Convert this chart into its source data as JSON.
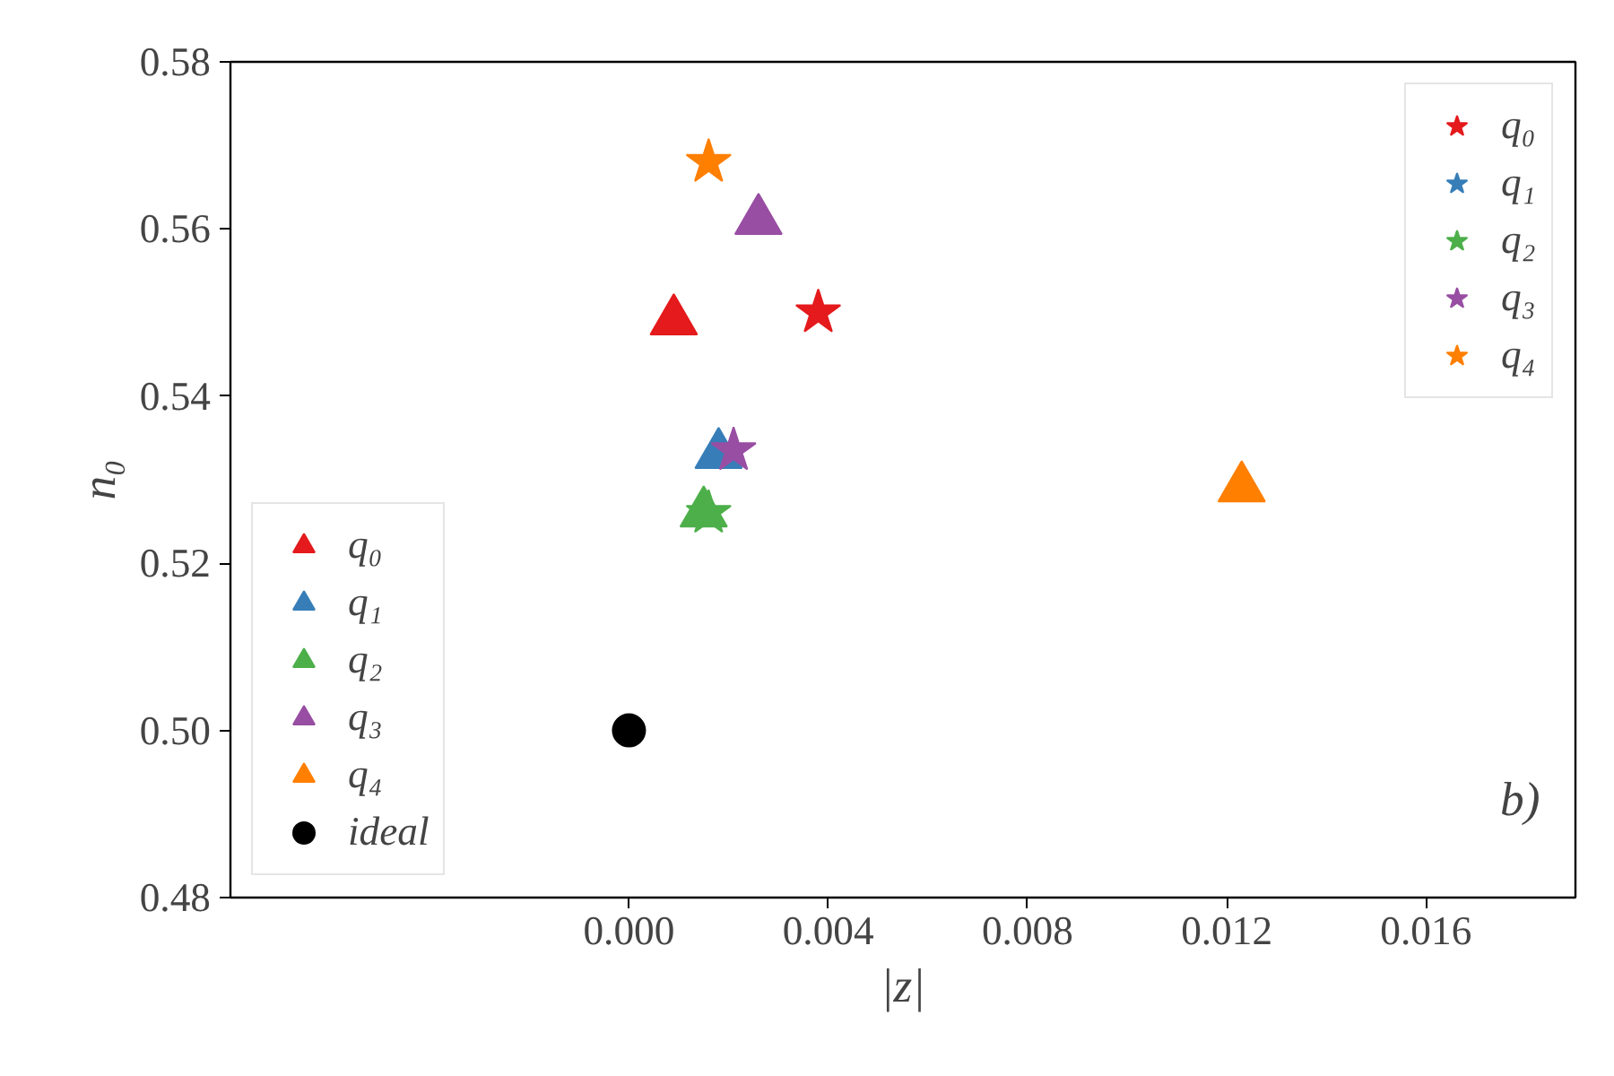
{
  "chart_data": {
    "type": "scatter",
    "xlabel": "|z|",
    "ylabel": "n₀",
    "xlim": [
      -0.008,
      0.019
    ],
    "ylim": [
      0.48,
      0.58
    ],
    "xticks": [
      {
        "value": 0,
        "label": "0.000"
      },
      {
        "value": 0.004,
        "label": "0.004"
      },
      {
        "value": 0.008,
        "label": "0.008"
      },
      {
        "value": 0.012,
        "label": "0.012"
      },
      {
        "value": 0.016,
        "label": "0.016"
      }
    ],
    "yticks": [
      {
        "value": 0.48,
        "label": "0.48"
      },
      {
        "value": 0.5,
        "label": "0.50"
      },
      {
        "value": 0.52,
        "label": "0.52"
      },
      {
        "value": 0.54,
        "label": "0.54"
      },
      {
        "value": 0.56,
        "label": "0.56"
      },
      {
        "value": 0.58,
        "label": "0.58"
      }
    ],
    "grid": false,
    "legend": [
      "bottom left",
      "top right"
    ],
    "annotations": [
      "b)"
    ],
    "series": [
      {
        "name": "q₀",
        "color": "#e41a1c",
        "marker": "triangle",
        "x": [
          0.0009
        ],
        "values": [
          0.549
        ]
      },
      {
        "name": "q₁",
        "color": "#377eb8",
        "marker": "triangle",
        "x": [
          0.0018
        ],
        "values": [
          0.533
        ]
      },
      {
        "name": "q₂",
        "color": "#4daf4a",
        "marker": "triangle",
        "x": [
          0.0015
        ],
        "values": [
          0.526
        ]
      },
      {
        "name": "q₃",
        "color": "#984ea3",
        "marker": "triangle",
        "x": [
          0.0026
        ],
        "values": [
          0.561
        ]
      },
      {
        "name": "q₄",
        "color": "#ff7f00",
        "marker": "triangle",
        "x": [
          0.0123
        ],
        "values": [
          0.529
        ]
      },
      {
        "name": "ideal",
        "color": "#000000",
        "marker": "circle",
        "x": [
          0.0
        ],
        "values": [
          0.5
        ]
      },
      {
        "name": "q₀",
        "color": "#e41a1c",
        "marker": "star",
        "x": [
          0.0038
        ],
        "values": [
          0.55
        ]
      },
      {
        "name": "q₁",
        "color": "#377eb8",
        "marker": "star",
        "x": [
          null
        ],
        "values": [
          null
        ]
      },
      {
        "name": "q₂",
        "color": "#4daf4a",
        "marker": "star",
        "x": [
          0.0016
        ],
        "values": [
          0.526
        ]
      },
      {
        "name": "q₃",
        "color": "#984ea3",
        "marker": "star",
        "x": [
          0.0021
        ],
        "values": [
          0.5335
        ]
      },
      {
        "name": "q₄",
        "color": "#ff7f00",
        "marker": "star",
        "x": [
          0.0016
        ],
        "values": [
          0.568
        ]
      }
    ]
  }
}
